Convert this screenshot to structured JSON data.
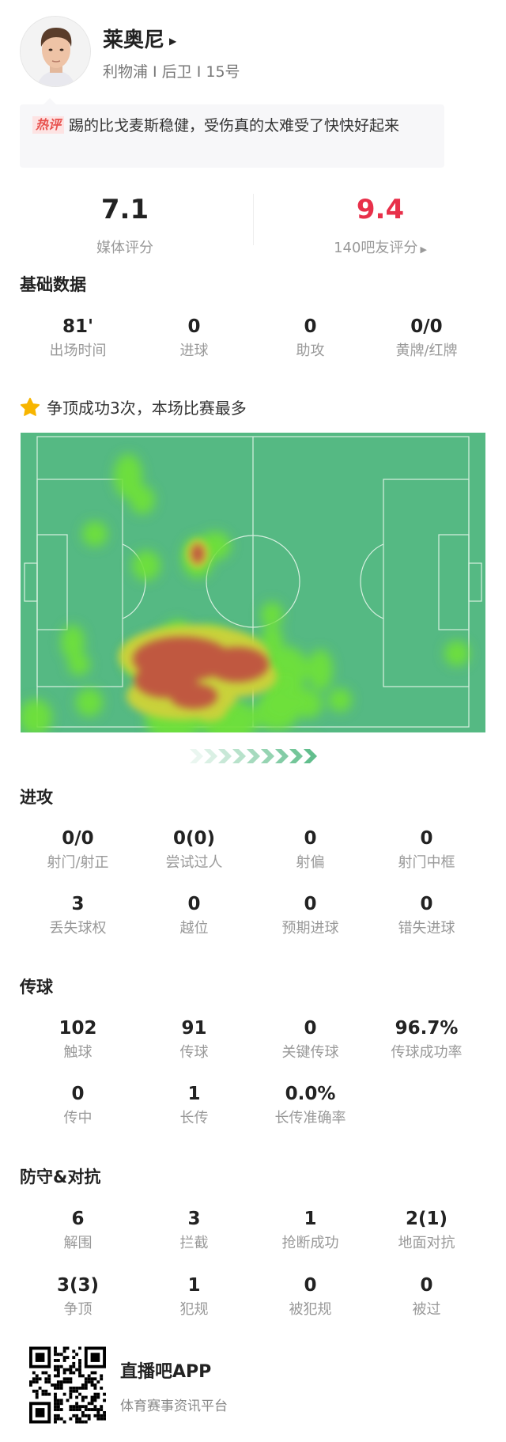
{
  "player": {
    "name": "莱奥尼",
    "meta": "利物浦 I 后卫 I 15号",
    "avatar_icon": "player-photo"
  },
  "hot_comment": {
    "tag": "热评",
    "text": "踢的比戈麦斯稳健，受伤真的太难受了快快好起来"
  },
  "ratings": {
    "media": {
      "value": "7.1",
      "label": "媒体评分",
      "color": "#222222"
    },
    "fans": {
      "value": "9.4",
      "label": "140吧友评分",
      "color": "#e8304a"
    }
  },
  "basic": {
    "title": "基础数据",
    "items": [
      {
        "value": "81'",
        "label": "出场时间"
      },
      {
        "value": "0",
        "label": "进球"
      },
      {
        "value": "0",
        "label": "助攻"
      },
      {
        "value": "0/0",
        "label": "黄牌/红牌"
      }
    ]
  },
  "highlight": {
    "icon": "star-icon",
    "text": "争顶成功3次，本场比赛最多",
    "color": "#f7b500"
  },
  "heatmap": {
    "pitch_color": "#55b983",
    "line_color": "#d7f0e0",
    "attack_direction": "right"
  },
  "attack": {
    "title": "进攻",
    "items": [
      {
        "value": "0/0",
        "label": "射门/射正"
      },
      {
        "value": "0(0)",
        "label": "尝试过人"
      },
      {
        "value": "0",
        "label": "射偏"
      },
      {
        "value": "0",
        "label": "射门中框"
      },
      {
        "value": "3",
        "label": "丢失球权"
      },
      {
        "value": "0",
        "label": "越位"
      },
      {
        "value": "0",
        "label": "预期进球"
      },
      {
        "value": "0",
        "label": "错失进球"
      }
    ]
  },
  "passing": {
    "title": "传球",
    "items": [
      {
        "value": "102",
        "label": "触球"
      },
      {
        "value": "91",
        "label": "传球"
      },
      {
        "value": "0",
        "label": "关键传球"
      },
      {
        "value": "96.7%",
        "label": "传球成功率"
      },
      {
        "value": "0",
        "label": "传中"
      },
      {
        "value": "1",
        "label": "长传"
      },
      {
        "value": "0.0%",
        "label": "长传准确率"
      }
    ]
  },
  "defense": {
    "title": "防守&对抗",
    "items": [
      {
        "value": "6",
        "label": "解围"
      },
      {
        "value": "3",
        "label": "拦截"
      },
      {
        "value": "1",
        "label": "抢断成功"
      },
      {
        "value": "2(1)",
        "label": "地面对抗"
      },
      {
        "value": "3(3)",
        "label": "争顶"
      },
      {
        "value": "1",
        "label": "犯规"
      },
      {
        "value": "0",
        "label": "被犯规"
      },
      {
        "value": "0",
        "label": "被过"
      }
    ]
  },
  "footer": {
    "app_name": "直播吧APP",
    "tagline": "体育赛事资讯平台",
    "qr_icon": "qr-code"
  }
}
